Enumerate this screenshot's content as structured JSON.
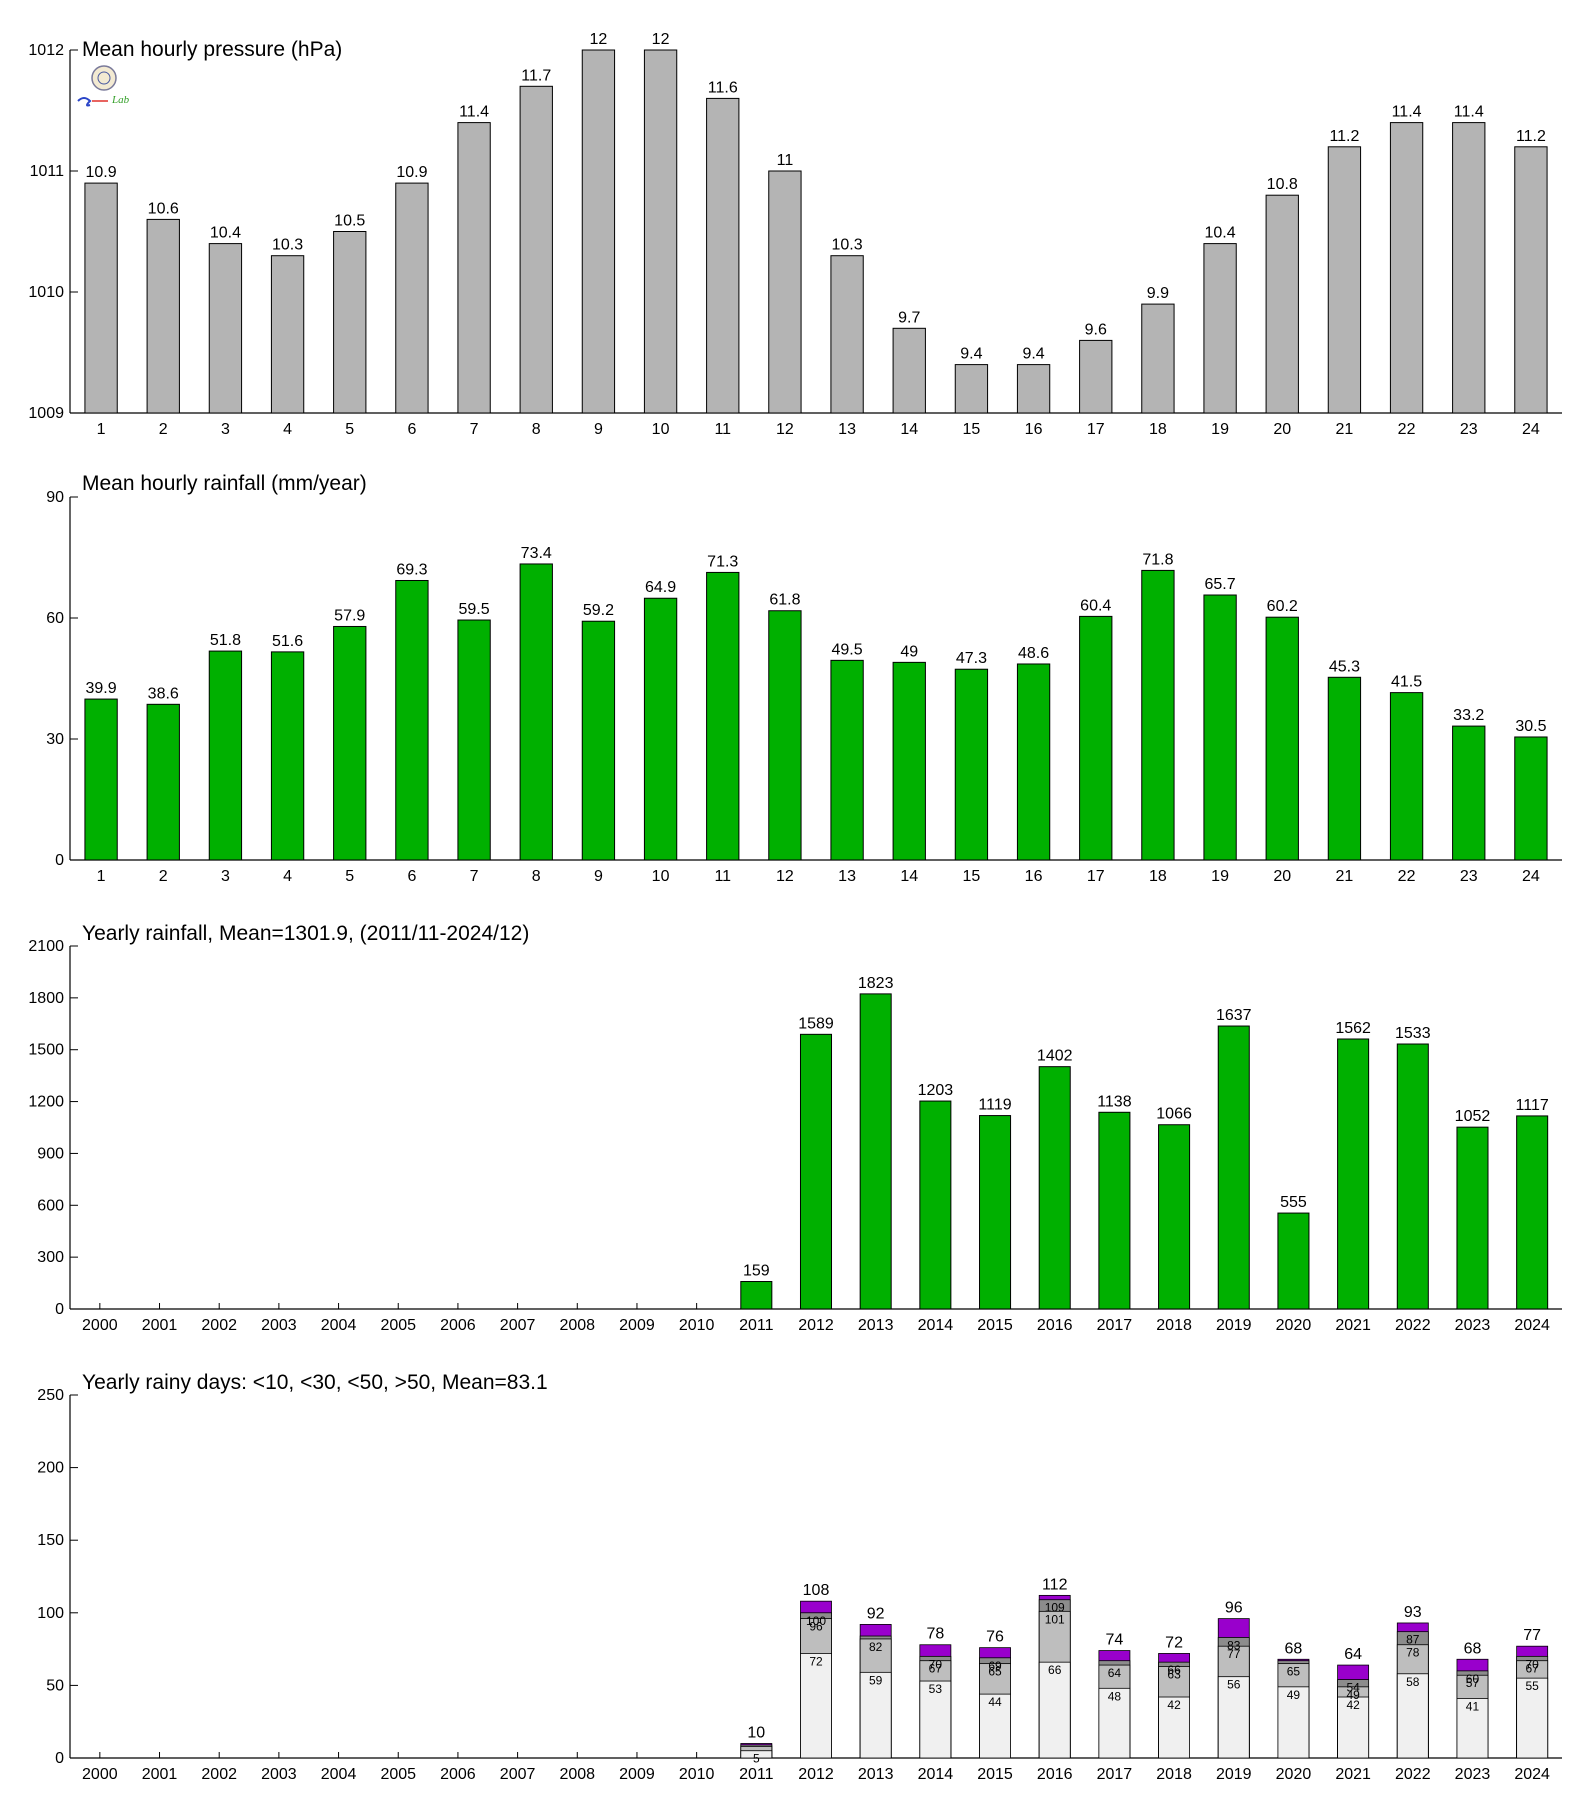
{
  "colors": {
    "pressure_bar": "#b4b4b4",
    "rain_bar": "#00b000",
    "days_lt10": "#f0f0f0",
    "days_lt30": "#bebebe",
    "days_lt50": "#8c8c8c",
    "days_gt50": "#9900cc",
    "outline": "#000000"
  },
  "logo": {
    "text": "Lab"
  },
  "chart_data": [
    {
      "type": "bar",
      "title": "Mean hourly pressure (hPa)",
      "categories": [
        "1",
        "2",
        "3",
        "4",
        "5",
        "6",
        "7",
        "8",
        "9",
        "10",
        "11",
        "12",
        "13",
        "14",
        "15",
        "16",
        "17",
        "18",
        "19",
        "20",
        "21",
        "22",
        "23",
        "24"
      ],
      "values": [
        1010.9,
        1010.6,
        1010.4,
        1010.3,
        1010.5,
        1010.9,
        1011.4,
        1011.7,
        1012,
        1012,
        1011.6,
        1011,
        1010.3,
        1009.7,
        1009.4,
        1009.4,
        1009.6,
        1009.9,
        1010.4,
        1010.8,
        1011.2,
        1011.4,
        1011.4,
        1011.2
      ],
      "labels": [
        "10.9",
        "10.6",
        "10.4",
        "10.3",
        "10.5",
        "10.9",
        "11.4",
        "11.7",
        "12",
        "12",
        "11.6",
        "11",
        "10.3",
        "9.7",
        "9.4",
        "9.4",
        "9.6",
        "9.9",
        "10.4",
        "10.8",
        "11.2",
        "11.4",
        "11.4",
        "11.2"
      ],
      "ylim": [
        1009,
        1012
      ],
      "yticks": [
        "1009",
        "1010",
        "1011",
        "1012"
      ],
      "ytick_values": [
        1009,
        1010,
        1011,
        1012
      ]
    },
    {
      "type": "bar",
      "title": "Mean hourly rainfall (mm/year)",
      "categories": [
        "1",
        "2",
        "3",
        "4",
        "5",
        "6",
        "7",
        "8",
        "9",
        "10",
        "11",
        "12",
        "13",
        "14",
        "15",
        "16",
        "17",
        "18",
        "19",
        "20",
        "21",
        "22",
        "23",
        "24"
      ],
      "values": [
        39.9,
        38.6,
        51.8,
        51.6,
        57.9,
        69.3,
        59.5,
        73.4,
        59.2,
        64.9,
        71.3,
        61.8,
        49.5,
        49,
        47.3,
        48.6,
        60.4,
        71.8,
        65.7,
        60.2,
        45.3,
        41.5,
        33.2,
        30.5
      ],
      "labels": [
        "39.9",
        "38.6",
        "51.8",
        "51.6",
        "57.9",
        "69.3",
        "59.5",
        "73.4",
        "59.2",
        "64.9",
        "71.3",
        "61.8",
        "49.5",
        "49",
        "47.3",
        "48.6",
        "60.4",
        "71.8",
        "65.7",
        "60.2",
        "45.3",
        "41.5",
        "33.2",
        "30.5"
      ],
      "ylim": [
        0,
        90
      ],
      "yticks": [
        "0",
        "30",
        "60",
        "90"
      ],
      "ytick_values": [
        0,
        30,
        60,
        90
      ]
    },
    {
      "type": "bar",
      "title": "Yearly rainfall, Mean=1301.9, (2011/11-2024/12)",
      "categories": [
        "2000",
        "2001",
        "2002",
        "2003",
        "2004",
        "2005",
        "2006",
        "2007",
        "2008",
        "2009",
        "2010",
        "2011",
        "2012",
        "2013",
        "2014",
        "2015",
        "2016",
        "2017",
        "2018",
        "2019",
        "2020",
        "2021",
        "2022",
        "2023",
        "2024"
      ],
      "values": [
        null,
        null,
        null,
        null,
        null,
        null,
        null,
        null,
        null,
        null,
        null,
        159,
        1589,
        1823,
        1203,
        1119,
        1402,
        1138,
        1066,
        1637,
        555,
        1562,
        1533,
        1052,
        1117
      ],
      "labels": [
        "",
        "",
        "",
        "",
        "",
        "",
        "",
        "",
        "",
        "",
        "",
        "159",
        "1589",
        "1823",
        "1203",
        "1119",
        "1402",
        "1138",
        "1066",
        "1637",
        "555",
        "1562",
        "1533",
        "1052",
        "1117"
      ],
      "ylim": [
        0,
        2100
      ],
      "yticks": [
        "0",
        "300",
        "600",
        "900",
        "1200",
        "1500",
        "1800",
        "2100"
      ],
      "ytick_values": [
        0,
        300,
        600,
        900,
        1200,
        1500,
        1800,
        2100
      ]
    },
    {
      "type": "bar",
      "stacked": true,
      "title": "Yearly rainy days: <10, <30, <50, >50, Mean=83.1",
      "categories": [
        "2000",
        "2001",
        "2002",
        "2003",
        "2004",
        "2005",
        "2006",
        "2007",
        "2008",
        "2009",
        "2010",
        "2011",
        "2012",
        "2013",
        "2014",
        "2015",
        "2016",
        "2017",
        "2018",
        "2019",
        "2020",
        "2021",
        "2022",
        "2023",
        "2024"
      ],
      "series_cumulative": {
        "lt10": [
          null,
          null,
          null,
          null,
          null,
          null,
          null,
          null,
          null,
          null,
          null,
          5,
          72,
          59,
          53,
          44,
          66,
          48,
          42,
          56,
          49,
          42,
          58,
          41,
          55
        ],
        "lt30": [
          null,
          null,
          null,
          null,
          null,
          null,
          null,
          null,
          null,
          null,
          null,
          8,
          96,
          82,
          67,
          65,
          101,
          64,
          63,
          77,
          65,
          49,
          78,
          57,
          67
        ],
        "lt50": [
          null,
          null,
          null,
          null,
          null,
          null,
          null,
          null,
          null,
          null,
          null,
          9,
          100,
          84,
          70,
          69,
          109,
          67,
          66,
          83,
          67,
          54,
          87,
          60,
          70
        ],
        "total": [
          null,
          null,
          null,
          null,
          null,
          null,
          null,
          null,
          null,
          null,
          null,
          10,
          108,
          92,
          78,
          76,
          112,
          74,
          72,
          96,
          68,
          64,
          93,
          68,
          77
        ]
      },
      "inner_labels": {
        "lt10": [
          "",
          "",
          "",
          "",
          "",
          "",
          "",
          "",
          "",
          "",
          "",
          "5",
          "72",
          "59",
          "53",
          "44",
          "66",
          "48",
          "42",
          "56",
          "49",
          "42",
          "58",
          "41",
          "55"
        ],
        "lt30": [
          "",
          "",
          "",
          "",
          "",
          "",
          "",
          "",
          "",
          "",
          "",
          "",
          "96",
          "82",
          "67",
          "65",
          "101",
          "64",
          "63",
          "77",
          "65",
          "49",
          "78",
          "57",
          "67"
        ],
        "lt50": [
          "",
          "",
          "",
          "",
          "",
          "",
          "",
          "",
          "",
          "",
          "",
          "",
          "100",
          "",
          "70",
          "69",
          "109",
          "",
          "66",
          "83",
          "",
          "54",
          "87",
          "60",
          "70"
        ]
      },
      "total_labels": [
        "",
        "",
        "",
        "",
        "",
        "",
        "",
        "",
        "",
        "",
        "",
        "10",
        "108",
        "92",
        "78",
        "76",
        "112",
        "74",
        "72",
        "96",
        "68",
        "64",
        "93",
        "68",
        "77"
      ],
      "ylim": [
        0,
        250
      ],
      "yticks": [
        "0",
        "50",
        "100",
        "150",
        "200",
        "250"
      ],
      "ytick_values": [
        0,
        50,
        100,
        150,
        200,
        250
      ]
    }
  ]
}
